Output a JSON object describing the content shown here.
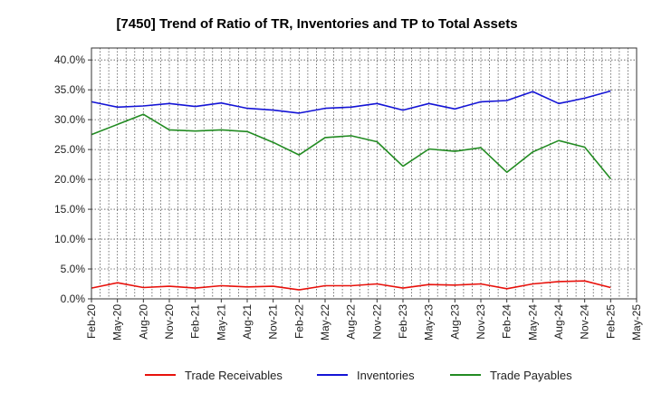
{
  "chart_data": {
    "type": "line",
    "title": "[7450]  Trend of Ratio of TR, Inventories and TP to Total Assets",
    "xlabel": "",
    "ylabel": "",
    "ylim": [
      0,
      42
    ],
    "yticks": [
      0,
      5,
      10,
      15,
      20,
      25,
      30,
      35,
      40
    ],
    "ytick_labels": [
      "0.0%",
      "5.0%",
      "10.0%",
      "15.0%",
      "20.0%",
      "25.0%",
      "30.0%",
      "35.0%",
      "40.0%"
    ],
    "x_tick_labels": [
      "Feb-20",
      "May-20",
      "Aug-20",
      "Nov-20",
      "Feb-21",
      "May-21",
      "Aug-21",
      "Nov-21",
      "Feb-22",
      "May-22",
      "Aug-22",
      "Nov-22",
      "Feb-23",
      "May-23",
      "Aug-23",
      "Nov-23",
      "Feb-24",
      "May-24",
      "Aug-24",
      "Nov-24",
      "Feb-25",
      "May-25"
    ],
    "x": [
      "Feb-20",
      "May-20",
      "Aug-20",
      "Nov-20",
      "Feb-21",
      "May-21",
      "Aug-21",
      "Nov-21",
      "Feb-22",
      "May-22",
      "Aug-22",
      "Nov-22",
      "Feb-23",
      "May-23",
      "Aug-23",
      "Nov-23",
      "Feb-24",
      "May-24",
      "Aug-24",
      "Nov-24",
      "Feb-25"
    ],
    "grid": true,
    "legend_position": "bottom",
    "series": [
      {
        "name": "Trade Receivables",
        "color": "#e8120c",
        "values": [
          1.8,
          2.7,
          1.9,
          2.1,
          1.8,
          2.2,
          2.0,
          2.1,
          1.5,
          2.2,
          2.2,
          2.5,
          1.8,
          2.4,
          2.3,
          2.5,
          1.7,
          2.5,
          2.9,
          3.0,
          1.9
        ]
      },
      {
        "name": "Inventories",
        "color": "#1414d6",
        "values": [
          33.0,
          32.1,
          32.3,
          32.7,
          32.2,
          32.8,
          31.9,
          31.6,
          31.1,
          31.9,
          32.1,
          32.7,
          31.6,
          32.7,
          31.8,
          33.0,
          33.2,
          34.7,
          32.7,
          33.6,
          34.8
        ]
      },
      {
        "name": "Trade Payables",
        "color": "#228b22",
        "values": [
          27.5,
          29.2,
          30.9,
          28.3,
          28.1,
          28.3,
          28.0,
          26.2,
          24.1,
          27.0,
          27.3,
          26.3,
          22.2,
          25.1,
          24.7,
          25.3,
          21.2,
          24.6,
          26.5,
          25.4,
          20.1
        ]
      }
    ]
  }
}
